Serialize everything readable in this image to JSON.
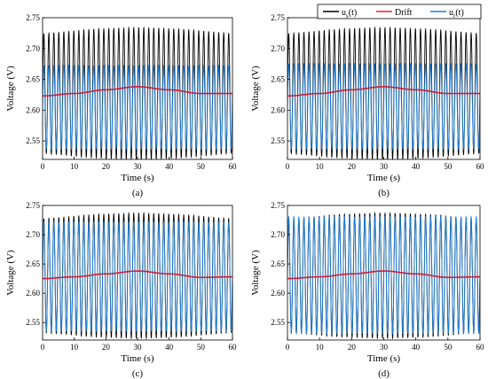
{
  "chart_data": [
    {
      "type": "line",
      "panel_label": "(a)",
      "xlabel": "Time (s)",
      "ylabel": "Voltage (V)",
      "xlim": [
        0,
        60
      ],
      "ylim": [
        2.52,
        2.75
      ],
      "x_ticks": [
        "0",
        "10",
        "20",
        "30",
        "40",
        "50",
        "60"
      ],
      "y_ticks": [
        "2.55",
        "2.60",
        "2.65",
        "2.70",
        "2.75"
      ],
      "oscillation": {
        "cycles": 38,
        "us_mean": 2.627,
        "us_amp": [
          0.097,
          0.107
        ],
        "ur_max": 2.672,
        "ur_min": 2.537
      },
      "drift": {
        "x": [
          0,
          10,
          20,
          30,
          40,
          50,
          60
        ],
        "y": [
          2.623,
          2.627,
          2.633,
          2.638,
          2.633,
          2.627,
          2.627
        ]
      }
    },
    {
      "type": "line",
      "panel_label": "(b)",
      "xlabel": "Time (s)",
      "ylabel": "Voltage (V)",
      "xlim": [
        0,
        60
      ],
      "ylim": [
        2.52,
        2.75
      ],
      "x_ticks": [
        "0",
        "10",
        "20",
        "30",
        "40",
        "50",
        "60"
      ],
      "y_ticks": [
        "2.55",
        "2.60",
        "2.65",
        "2.70",
        "2.75"
      ],
      "oscillation": {
        "cycles": 38,
        "us_mean": 2.627,
        "us_amp": [
          0.097,
          0.107
        ],
        "ur_max": 2.675,
        "ur_min": 2.537
      },
      "drift": {
        "x": [
          0,
          10,
          20,
          30,
          40,
          50,
          60
        ],
        "y": [
          2.623,
          2.627,
          2.633,
          2.638,
          2.633,
          2.627,
          2.627
        ]
      }
    },
    {
      "type": "line",
      "panel_label": "(c)",
      "xlabel": "Time (s)",
      "ylabel": "Voltage (V)",
      "xlim": [
        0,
        60
      ],
      "ylim": [
        2.52,
        2.75
      ],
      "x_ticks": [
        "0",
        "10",
        "20",
        "30",
        "40",
        "50",
        "60"
      ],
      "y_ticks": [
        "2.55",
        "2.60",
        "2.65",
        "2.70",
        "2.75"
      ],
      "oscillation": {
        "cycles": 38,
        "us_mean": 2.63,
        "us_amp": [
          0.097,
          0.107
        ],
        "ur_max": 2.722,
        "ur_min": 2.535
      },
      "drift": {
        "x": [
          0,
          10,
          20,
          30,
          40,
          50,
          60
        ],
        "y": [
          2.625,
          2.628,
          2.633,
          2.638,
          2.633,
          2.627,
          2.628
        ]
      }
    },
    {
      "type": "line",
      "panel_label": "(d)",
      "xlabel": "Time (s)",
      "ylabel": "Voltage (V)",
      "xlim": [
        0,
        60
      ],
      "ylim": [
        2.52,
        2.75
      ],
      "x_ticks": [
        "0",
        "10",
        "20",
        "30",
        "40",
        "50",
        "60"
      ],
      "y_ticks": [
        "2.55",
        "2.60",
        "2.65",
        "2.70",
        "2.75"
      ],
      "oscillation": {
        "cycles": 38,
        "us_mean": 2.63,
        "us_amp": [
          0.097,
          0.107
        ],
        "ur_max": 2.731,
        "ur_min": 2.531
      },
      "drift": {
        "x": [
          0,
          10,
          20,
          30,
          40,
          50,
          60
        ],
        "y": [
          2.625,
          2.628,
          2.633,
          2.638,
          2.633,
          2.627,
          2.628
        ]
      }
    }
  ],
  "legend": {
    "placement": "top-right",
    "entries": [
      {
        "label": "u_s(t)",
        "main": "u",
        "sub": "s",
        "suffix": "(t)",
        "color": "#000000"
      },
      {
        "label": "Drift",
        "main": "Drift",
        "sub": "",
        "suffix": "",
        "color": "#e0202a"
      },
      {
        "label": "u_r(t)",
        "main": "u",
        "sub": "r",
        "suffix": "(t)",
        "color": "#1e7fd8"
      }
    ]
  },
  "colors": {
    "us": "#000000",
    "drift": "#c8203a",
    "ur": "#1e7fd8"
  }
}
